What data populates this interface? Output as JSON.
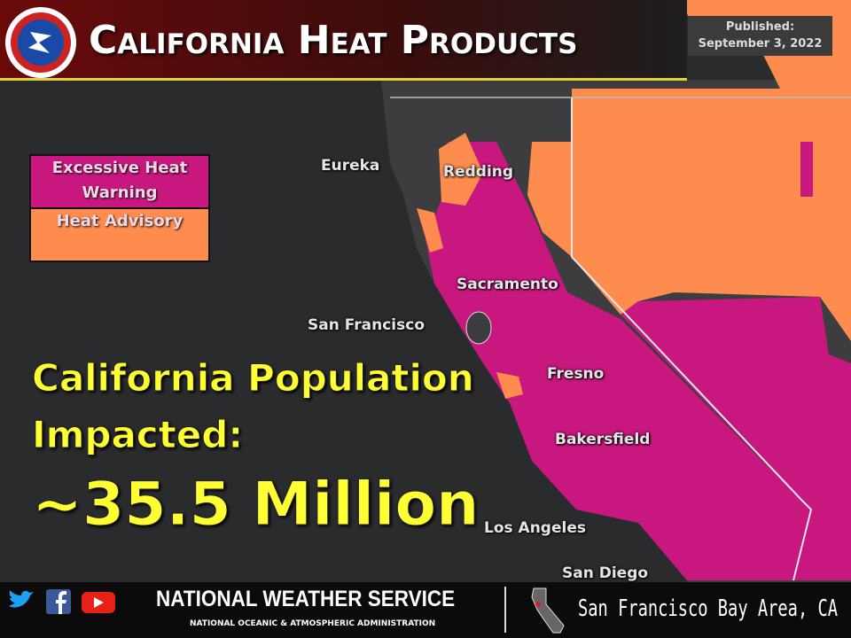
{
  "header": {
    "title": "California Heat Products",
    "published_label": "Published:",
    "published_date": "September 3, 2022"
  },
  "legend": [
    {
      "label": "Excessive Heat Warning",
      "color": "#c8177f"
    },
    {
      "label": "Heat Advisory",
      "color": "#ff8c4f"
    }
  ],
  "cities": [
    "Eureka",
    "Redding",
    "Sacramento",
    "San Francisco",
    "Fresno",
    "Bakersfield",
    "Los Angeles",
    "San Diego"
  ],
  "headline": {
    "line1": "California Population",
    "line2": "Impacted:",
    "value": "~35.5 Million"
  },
  "footer": {
    "agency": "NATIONAL WEATHER SERVICE",
    "parent": "NATIONAL OCEANIC & ATMOSPHERIC ADMINISTRATION",
    "office": "San Francisco Bay Area, CA"
  }
}
